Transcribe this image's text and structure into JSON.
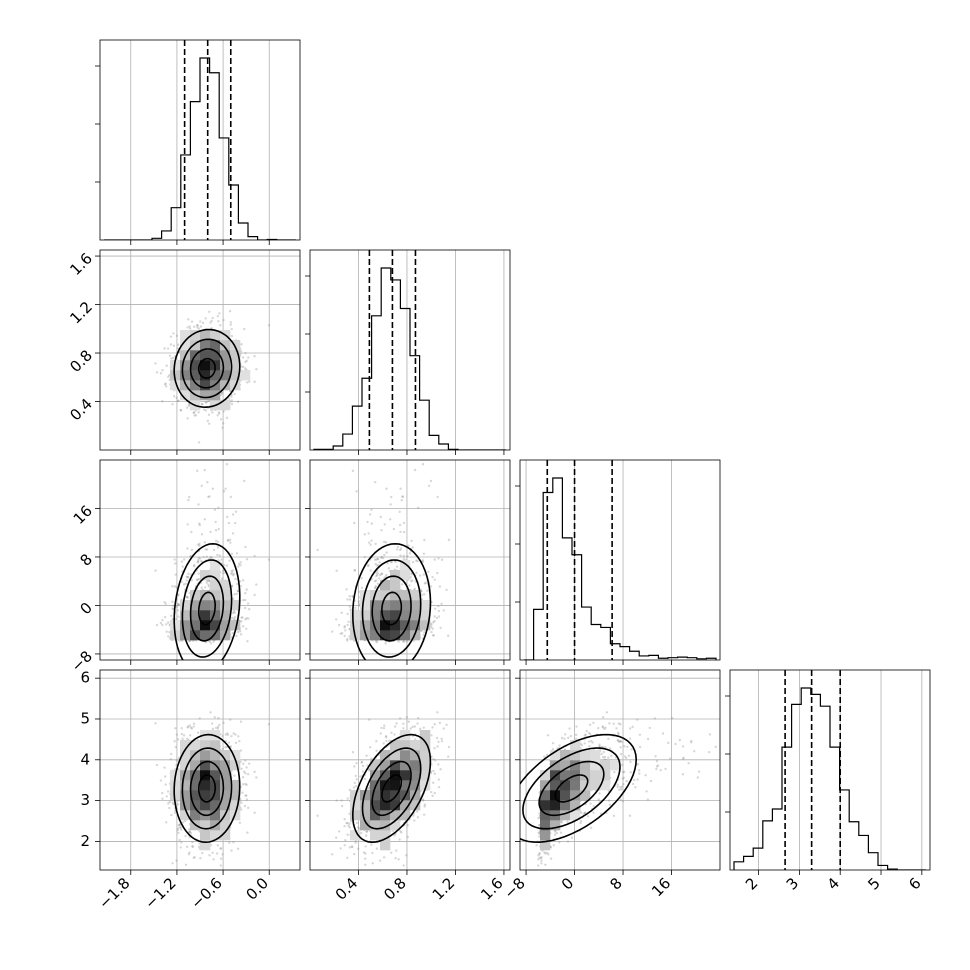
{
  "chart_data": {
    "type": "corner",
    "title": "",
    "grid": true,
    "parameters": [
      {
        "xlabel": "",
        "range": [
          -2.2,
          0.4
        ],
        "ticks": [
          -1.8,
          -1.2,
          -0.6,
          0.0
        ],
        "tick_labels": [
          "−1.8",
          "−1.2",
          "−0.6",
          "0.0"
        ],
        "median": -0.8,
        "mean": -0.8,
        "sd": 0.22,
        "q16": -1.1,
        "q50": -0.8,
        "q84": -0.5,
        "skew": 0
      },
      {
        "xlabel": "",
        "range": [
          0.0,
          1.65
        ],
        "ticks": [
          0.4,
          0.8,
          1.2,
          1.6
        ],
        "tick_labels": [
          "0.4",
          "0.8",
          "1.2",
          "1.6"
        ],
        "median": 0.68,
        "mean": 0.68,
        "sd": 0.16,
        "q16": 0.49,
        "q50": 0.68,
        "q84": 0.87,
        "skew": 0
      },
      {
        "xlabel": "",
        "range": [
          -9,
          24
        ],
        "ticks": [
          -8,
          0,
          8,
          16
        ],
        "tick_labels": [
          "−8",
          "0",
          "8",
          "16"
        ],
        "median": 0.0,
        "mean": 0.3,
        "sd": 5.8,
        "q16": -4.5,
        "q50": 0.0,
        "q84": 6.2,
        "skew": 1
      },
      {
        "xlabel": "",
        "range": [
          1.3,
          6.2
        ],
        "ticks": [
          2,
          3,
          4,
          5,
          6
        ],
        "tick_labels": [
          "2",
          "3",
          "4",
          "5",
          "6"
        ],
        "median": 3.3,
        "mean": 3.3,
        "sd": 0.65,
        "q16": 2.65,
        "q50": 3.3,
        "q84": 4.0,
        "skew": 0
      }
    ],
    "correlations": [
      [
        1.0,
        0.0,
        0.2,
        0.0
      ],
      [
        0.0,
        1.0,
        0.1,
        0.5
      ],
      [
        0.2,
        0.1,
        1.0,
        0.6
      ],
      [
        0.0,
        0.5,
        0.6,
        1.0
      ]
    ],
    "contour_levels_sigma": [
      0.5,
      1.0,
      1.5,
      2.0
    ],
    "scatter_points_per_panel": 1400,
    "histogram_bins": 20,
    "colors": {
      "line": "#000000",
      "points": "#8c8c8c",
      "grid": "#b0b0b0"
    }
  }
}
